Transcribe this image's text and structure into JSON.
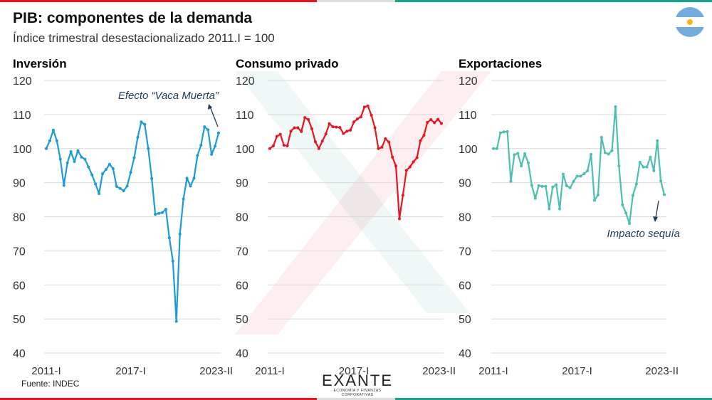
{
  "header": {
    "title": "PIB: componentes de la demanda",
    "subtitle": "Índice trimestral desestacionalizado 2011.I = 100"
  },
  "footer": {
    "source": "Fuente: INDEC",
    "logo_name": "EXANTE",
    "logo_tagline": "ECONOMÍA Y FINANZAS CORPORATIVAS"
  },
  "colors": {
    "inversion": "#1e9ad6",
    "consumo": "#e8141f",
    "exportaciones": "#4dbfb1",
    "top_bar_left": "#e8141f",
    "top_bar_right": "#17a08a"
  },
  "chart_data": [
    {
      "type": "line",
      "title": "Inversión",
      "ylim": [
        40,
        120
      ],
      "yticks": [
        40,
        50,
        60,
        70,
        80,
        90,
        100,
        110,
        120
      ],
      "x_start": "2011-I",
      "x_end": "2023-II",
      "xtick_labels": [
        "2011-I",
        "2017-I",
        "2023-II"
      ],
      "grid": true,
      "color": "#1e9ad6",
      "annotation": "Efecto “Vaca Muerta”",
      "values": [
        100,
        102.3,
        105.4,
        102.3,
        96.9,
        89.2,
        95.8,
        99.1,
        96.2,
        99.4,
        97.5,
        96.9,
        94.6,
        92.3,
        89.6,
        86.8,
        92.6,
        93.9,
        95.4,
        94.1,
        88.9,
        88.3,
        87.6,
        89.0,
        93.0,
        97.3,
        103.3,
        107.8,
        107.1,
        100.0,
        91.2,
        80.7,
        81.0,
        81.2,
        82.2,
        73.8,
        67.0,
        49.3,
        74.9,
        85.2,
        91.3,
        89.0,
        91.3,
        98.0,
        101.0,
        106.4,
        105.5,
        98.3,
        100.7,
        104.6
      ]
    },
    {
      "type": "line",
      "title": "Consumo privado",
      "ylim": [
        40,
        120
      ],
      "yticks": [
        40,
        50,
        60,
        70,
        80,
        90,
        100,
        110,
        120
      ],
      "x_start": "2011-I",
      "x_end": "2023-II",
      "xtick_labels": [
        "2011-I",
        "2017-I",
        "2023-II"
      ],
      "grid": true,
      "color": "#e8141f",
      "values": [
        100,
        100.8,
        103.6,
        104.2,
        101,
        100.8,
        105.1,
        106.1,
        106.1,
        105.0,
        109.1,
        108.5,
        105.8,
        102,
        100,
        102.2,
        104.3,
        107.3,
        106.4,
        106.3,
        106.2,
        104.4,
        105.1,
        105.4,
        107.8,
        108.7,
        109.3,
        112.2,
        112.5,
        109.8,
        106.1,
        100,
        100.4,
        102.9,
        101.9,
        97.5,
        94.9,
        79.4,
        86.3,
        93.6,
        94.6,
        96.1,
        97.3,
        102.3,
        103.9,
        107.7,
        108.5,
        107.6,
        108.6,
        107.4
      ]
    },
    {
      "type": "line",
      "title": "Exportaciones",
      "ylim": [
        40,
        120
      ],
      "yticks": [
        40,
        50,
        60,
        70,
        80,
        90,
        100,
        110,
        120
      ],
      "x_start": "2011-I",
      "x_end": "2023-II",
      "xtick_labels": [
        "2011-I",
        "2017-I",
        "2023-II"
      ],
      "grid": true,
      "color": "#4dbfb1",
      "annotation": "Impacto sequía",
      "values": [
        100,
        100,
        104.6,
        104.9,
        105,
        90.4,
        98.2,
        98.6,
        94.9,
        98.5,
        95.8,
        89.2,
        85.4,
        89.1,
        88.9,
        88.9,
        82.3,
        88.7,
        89.4,
        82.3,
        92.5,
        89.1,
        88.5,
        90.4,
        91.9,
        91.9,
        92.6,
        93.5,
        98.3,
        84.8,
        86.4,
        103.3,
        98.8,
        98.4,
        99.4,
        112.3,
        94.9,
        83.5,
        81.1,
        78,
        86.3,
        89.6,
        96,
        94.6,
        94.6,
        97.5,
        93.5,
        102.3,
        90.5,
        86.5
      ]
    }
  ]
}
